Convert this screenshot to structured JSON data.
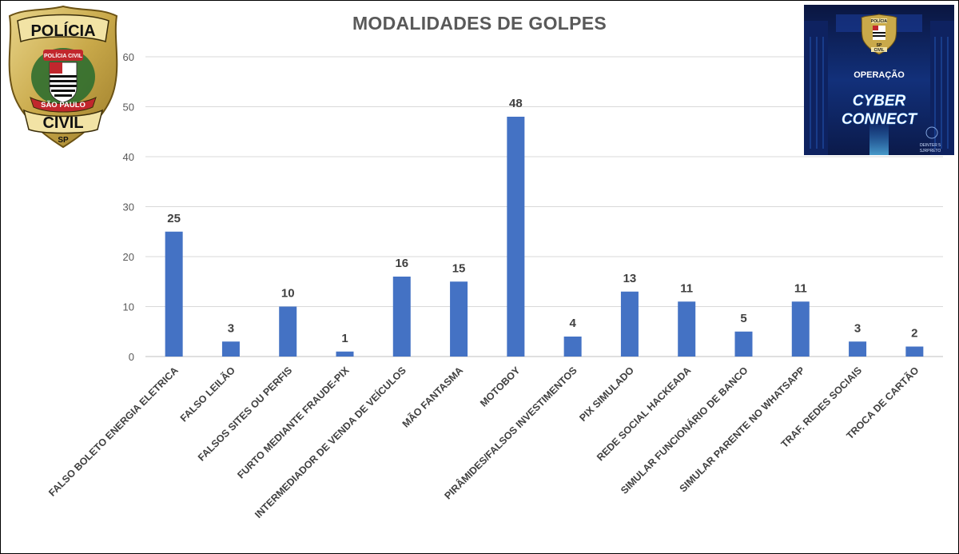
{
  "header": {
    "badge": {
      "lines": [
        "POLÍCIA",
        "POLÍCIA CIVIL",
        "SÃO PAULO",
        "CIVIL",
        "SP"
      ]
    },
    "operation": {
      "badge_lines": [
        "POLÍCIA",
        "SP",
        "CIVIL"
      ],
      "label": "OPERAÇÃO",
      "name_line1": "CYBER",
      "name_line2": "CONNECT",
      "footer_lines": [
        "DEINTER 5",
        "SJRPRETO"
      ]
    }
  },
  "colors": {
    "bar": "#4472C4",
    "grid": "#D9D9D9",
    "title": "#595959",
    "text": "#404040"
  },
  "chart_data": {
    "type": "bar",
    "title": "MODALIDADES DE GOLPES",
    "categories": [
      "FALSO BOLETO ENERGIA ELETRICA",
      "FALSO LEILÃO",
      "FALSOS SITES OU PERFIS",
      "FURTO MEDIANTE FRAUDE-PIX",
      "INTERMEDIADOR DE VENDA DE VEÍCULOS",
      "MÃO FANTASMA",
      "MOTOBOY",
      "PIRÂMIDES/FALSOS INVESTIMENTOS",
      "PIX SIMULADO",
      "REDE SOCIAL HACKEADA",
      "SIMULAR FUNCIONÁRIO DE BANCO",
      "SIMULAR PARENTE NO WHATSAPP",
      "TRAF. REDES SOCIAIS",
      "TROCA DE CARTÃO"
    ],
    "values": [
      25,
      3,
      10,
      1,
      16,
      15,
      48,
      4,
      13,
      11,
      5,
      11,
      3,
      2
    ],
    "data_labels": [
      "25",
      "3",
      "10",
      "1",
      "16",
      "15",
      "48",
      "4",
      "13",
      "11",
      "5",
      "11",
      "3",
      "2"
    ],
    "ylim": [
      0,
      60
    ],
    "yticks": [
      0,
      10,
      20,
      30,
      40,
      50,
      60
    ],
    "ytick_labels": [
      "0",
      "10",
      "20",
      "30",
      "40",
      "50",
      "60"
    ],
    "grid": true,
    "legend": "none",
    "xlabel": "",
    "ylabel": ""
  }
}
